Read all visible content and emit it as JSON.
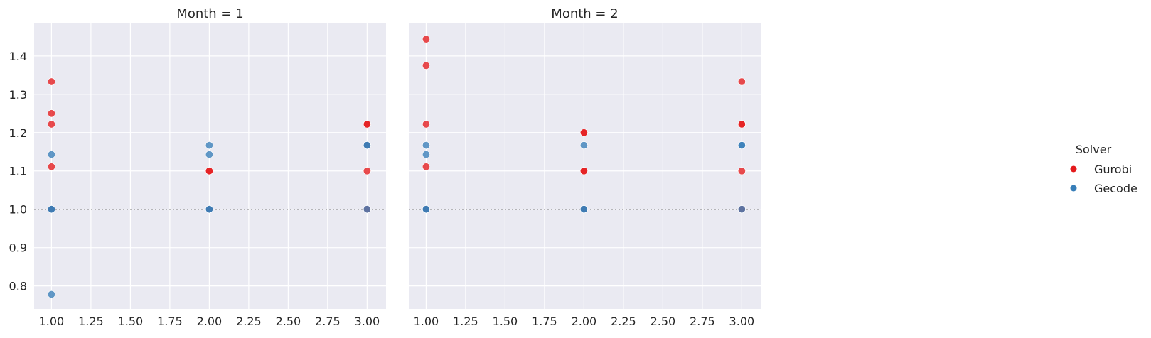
{
  "chart_data": [
    {
      "type": "scatter",
      "title": "Month = 1",
      "xlim": [
        0.89,
        3.12
      ],
      "ylim": [
        0.74,
        1.485
      ],
      "xticks": [
        "1.00",
        "1.25",
        "1.50",
        "1.75",
        "2.00",
        "2.25",
        "2.50",
        "2.75",
        "3.00"
      ],
      "yticks": [
        "0.8",
        "0.9",
        "1.0",
        "1.1",
        "1.2",
        "1.3",
        "1.4"
      ],
      "show_yticklabels": true,
      "reference_line_y": 1.0,
      "grid": true,
      "series": [
        {
          "name": "Gurobi",
          "color": "#e41a1c",
          "points": [
            {
              "x": 1.0,
              "y": 1.333
            },
            {
              "x": 1.0,
              "y": 1.25
            },
            {
              "x": 1.0,
              "y": 1.222
            },
            {
              "x": 1.0,
              "y": 1.111
            },
            {
              "x": 1.0,
              "y": 1.0
            },
            {
              "x": 2.0,
              "y": 1.1
            },
            {
              "x": 2.0,
              "y": 1.1
            },
            {
              "x": 2.0,
              "y": 1.0
            },
            {
              "x": 3.0,
              "y": 1.222
            },
            {
              "x": 3.0,
              "y": 1.222
            },
            {
              "x": 3.0,
              "y": 1.167
            },
            {
              "x": 3.0,
              "y": 1.1
            },
            {
              "x": 3.0,
              "y": 1.0
            }
          ]
        },
        {
          "name": "Gecode",
          "color": "#377eb8",
          "points": [
            {
              "x": 1.0,
              "y": 1.143
            },
            {
              "x": 1.0,
              "y": 1.0
            },
            {
              "x": 1.0,
              "y": 1.0
            },
            {
              "x": 1.0,
              "y": 0.778
            },
            {
              "x": 2.0,
              "y": 1.167
            },
            {
              "x": 2.0,
              "y": 1.143
            },
            {
              "x": 2.0,
              "y": 1.0
            },
            {
              "x": 2.0,
              "y": 1.0
            },
            {
              "x": 3.0,
              "y": 1.167
            },
            {
              "x": 3.0,
              "y": 1.167
            },
            {
              "x": 3.0,
              "y": 1.0
            }
          ]
        }
      ]
    },
    {
      "type": "scatter",
      "title": "Month = 2",
      "xlim": [
        0.89,
        3.12
      ],
      "ylim": [
        0.74,
        1.485
      ],
      "xticks": [
        "1.00",
        "1.25",
        "1.50",
        "1.75",
        "2.00",
        "2.25",
        "2.50",
        "2.75",
        "3.00"
      ],
      "yticks": [
        "0.8",
        "0.9",
        "1.0",
        "1.1",
        "1.2",
        "1.3",
        "1.4"
      ],
      "show_yticklabels": false,
      "reference_line_y": 1.0,
      "grid": true,
      "series": [
        {
          "name": "Gurobi",
          "color": "#e41a1c",
          "points": [
            {
              "x": 1.0,
              "y": 1.444
            },
            {
              "x": 1.0,
              "y": 1.375
            },
            {
              "x": 1.0,
              "y": 1.222
            },
            {
              "x": 1.0,
              "y": 1.111
            },
            {
              "x": 1.0,
              "y": 1.0
            },
            {
              "x": 2.0,
              "y": 1.2
            },
            {
              "x": 2.0,
              "y": 1.2
            },
            {
              "x": 2.0,
              "y": 1.1
            },
            {
              "x": 2.0,
              "y": 1.1
            },
            {
              "x": 2.0,
              "y": 1.0
            },
            {
              "x": 3.0,
              "y": 1.333
            },
            {
              "x": 3.0,
              "y": 1.222
            },
            {
              "x": 3.0,
              "y": 1.222
            },
            {
              "x": 3.0,
              "y": 1.1
            },
            {
              "x": 3.0,
              "y": 1.0
            }
          ]
        },
        {
          "name": "Gecode",
          "color": "#377eb8",
          "points": [
            {
              "x": 1.0,
              "y": 1.167
            },
            {
              "x": 1.0,
              "y": 1.143
            },
            {
              "x": 1.0,
              "y": 1.0
            },
            {
              "x": 1.0,
              "y": 1.0
            },
            {
              "x": 2.0,
              "y": 1.167
            },
            {
              "x": 2.0,
              "y": 1.0
            },
            {
              "x": 2.0,
              "y": 1.0
            },
            {
              "x": 3.0,
              "y": 1.167
            },
            {
              "x": 3.0,
              "y": 1.167
            },
            {
              "x": 3.0,
              "y": 1.0
            }
          ]
        }
      ]
    }
  ],
  "legend": {
    "title": "Solver",
    "placement": "right",
    "items": [
      {
        "label": "Gurobi",
        "color": "#e41a1c"
      },
      {
        "label": "Gecode",
        "color": "#377eb8"
      }
    ]
  }
}
